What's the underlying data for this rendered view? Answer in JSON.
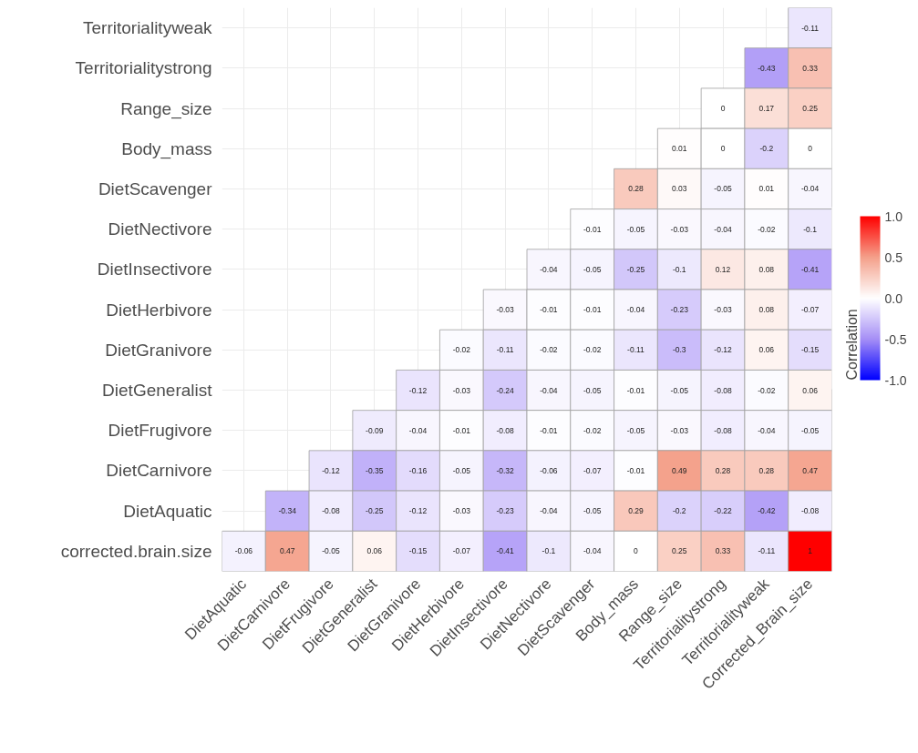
{
  "chart_data": {
    "type": "heatmap",
    "categories": [
      "DietAquatic",
      "DietCarnivore",
      "DietFrugivore",
      "DietGeneralist",
      "DietGranivore",
      "DietHerbivore",
      "DietInsectivore",
      "DietNectivore",
      "DietScavenger",
      "Body_mass",
      "Range_size",
      "Territorialitystrong",
      "Territorialityweak",
      "Corrected_Brain_size"
    ],
    "y_categories": [
      "Territorialityweak",
      "Territorialitystrong",
      "Range_size",
      "Body_mass",
      "DietScavenger",
      "DietNectivore",
      "DietInsectivore",
      "DietHerbivore",
      "DietGranivore",
      "DietGeneralist",
      "DietFrugivore",
      "DietCarnivore",
      "DietAquatic",
      "corrected.brain.size"
    ],
    "cells": [
      [
        null,
        null,
        null,
        null,
        null,
        null,
        null,
        null,
        null,
        null,
        null,
        null,
        null,
        -0.11
      ],
      [
        null,
        null,
        null,
        null,
        null,
        null,
        null,
        null,
        null,
        null,
        null,
        null,
        -0.43,
        0.33
      ],
      [
        null,
        null,
        null,
        null,
        null,
        null,
        null,
        null,
        null,
        null,
        null,
        0,
        0.17,
        0.25
      ],
      [
        null,
        null,
        null,
        null,
        null,
        null,
        null,
        null,
        null,
        null,
        0.01,
        0,
        -0.2,
        0
      ],
      [
        null,
        null,
        null,
        null,
        null,
        null,
        null,
        null,
        null,
        0.28,
        0.03,
        -0.05,
        0.01,
        -0.04
      ],
      [
        null,
        null,
        null,
        null,
        null,
        null,
        null,
        null,
        -0.01,
        -0.05,
        -0.03,
        -0.04,
        -0.02,
        -0.1
      ],
      [
        null,
        null,
        null,
        null,
        null,
        null,
        null,
        -0.04,
        -0.05,
        -0.25,
        -0.1,
        0.12,
        0.08,
        -0.41
      ],
      [
        null,
        null,
        null,
        null,
        null,
        null,
        -0.03,
        -0.01,
        -0.01,
        -0.04,
        -0.23,
        -0.03,
        0.08,
        -0.07
      ],
      [
        null,
        null,
        null,
        null,
        null,
        -0.02,
        -0.11,
        -0.02,
        -0.02,
        -0.11,
        -0.3,
        -0.12,
        0.06,
        -0.15
      ],
      [
        null,
        null,
        null,
        null,
        -0.12,
        -0.03,
        -0.24,
        -0.04,
        -0.05,
        -0.01,
        -0.05,
        -0.08,
        -0.02,
        0.06
      ],
      [
        null,
        null,
        null,
        -0.09,
        -0.04,
        -0.01,
        -0.08,
        -0.01,
        -0.02,
        -0.05,
        -0.03,
        -0.08,
        -0.04,
        -0.05
      ],
      [
        null,
        null,
        -0.12,
        -0.35,
        -0.16,
        -0.05,
        -0.32,
        -0.06,
        -0.07,
        -0.01,
        0.49,
        0.28,
        0.28,
        0.47
      ],
      [
        null,
        -0.34,
        -0.08,
        -0.25,
        -0.12,
        -0.03,
        -0.23,
        -0.04,
        -0.05,
        0.29,
        -0.2,
        -0.22,
        -0.42,
        -0.08
      ],
      [
        -0.06,
        0.47,
        -0.05,
        0.06,
        -0.15,
        -0.07,
        -0.41,
        -0.1,
        -0.04,
        0,
        0.25,
        0.33,
        -0.11,
        1
      ]
    ],
    "clabel": "Correlation",
    "clim": [
      -1,
      1
    ],
    "cticks": [
      {
        "value": -1,
        "label": "-1.0"
      },
      {
        "value": -0.5,
        "label": "-0.5"
      },
      {
        "value": 0,
        "label": "0.0"
      },
      {
        "value": 0.5,
        "label": "0.5"
      },
      {
        "value": 1,
        "label": "1.0"
      }
    ],
    "data_labels": true,
    "grid": true
  }
}
